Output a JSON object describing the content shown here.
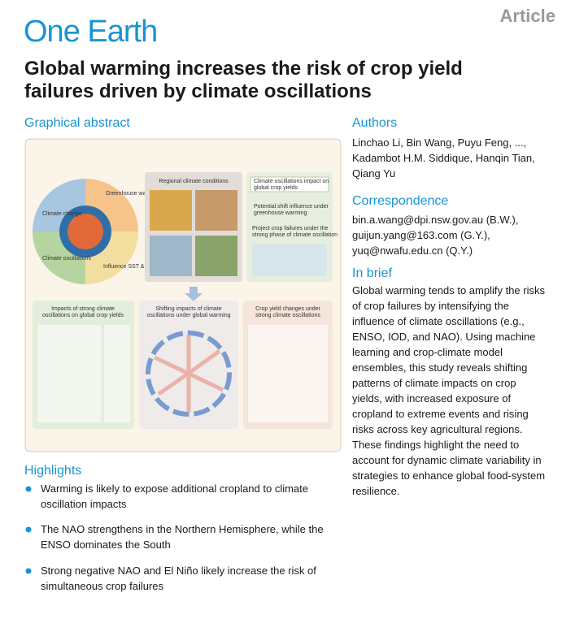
{
  "header": {
    "label": "Article",
    "journal": "One Earth",
    "title_lines": [
      "Global warming increases the risk of crop yield",
      "failures driven by climate oscillations"
    ]
  },
  "graphical_abstract": {
    "heading": "Graphical abstract",
    "circle_labels": [
      "Climate change",
      "Greenhouse warming",
      "Climate oscillations",
      "Influence SST & SLP"
    ],
    "regional_title": "Regional climate conditions",
    "steps": [
      [
        "Climate oscillations impact on",
        "global crop yields"
      ],
      [
        "Potential shift influence under",
        "greenhouse warming"
      ],
      [
        "Project crop failures under the",
        "strong phase of climate oscillation"
      ]
    ],
    "panels": [
      [
        "Impacts of strong climate",
        "oscillations on global crop yields"
      ],
      [
        "Shifting impacts of climate",
        "oscillations under global warming"
      ],
      [
        "Crop  yield changes under",
        "strong climate oscillations"
      ]
    ]
  },
  "authors": {
    "heading": "Authors",
    "lines": [
      "Linchao Li, Bin Wang, Puyu Feng, ...,",
      "Kadambot H.M. Siddique, Hanqin Tian,",
      "Qiang Yu"
    ]
  },
  "correspondence": {
    "heading": "Correspondence",
    "lines": [
      "bin.a.wang@dpi.nsw.gov.au (B.W.),",
      "guijun.yang@163.com (G.Y.),",
      "yuq@nwafu.edu.cn (Q.Y.)"
    ]
  },
  "in_brief": {
    "heading": "In brief",
    "lines": [
      "Global warming tends to amplify the risks",
      "of crop failures by intensifying the",
      "influence of climate oscillations (e.g.,",
      "ENSO, IOD, and NAO). Using machine",
      "learning and crop-climate model",
      "ensembles, this study reveals shifting",
      "patterns of climate impacts on crop",
      "yields, with increased exposure of",
      "cropland to extreme events and rising",
      "risks across key agricultural regions.",
      "These findings highlight the need to",
      "account for dynamic climate variability in",
      "strategies to enhance global food-system",
      "resilience."
    ]
  },
  "highlights": {
    "heading": "Highlights",
    "items": [
      [
        "Warming is likely to expose additional cropland to climate",
        "oscillation impacts"
      ],
      [
        "The NAO strengthens in the Northern Hemisphere, while the",
        "ENSO dominates the South"
      ],
      [
        "Strong negative NAO and El Niño likely increase the risk of",
        "simultaneous crop failures"
      ]
    ]
  }
}
